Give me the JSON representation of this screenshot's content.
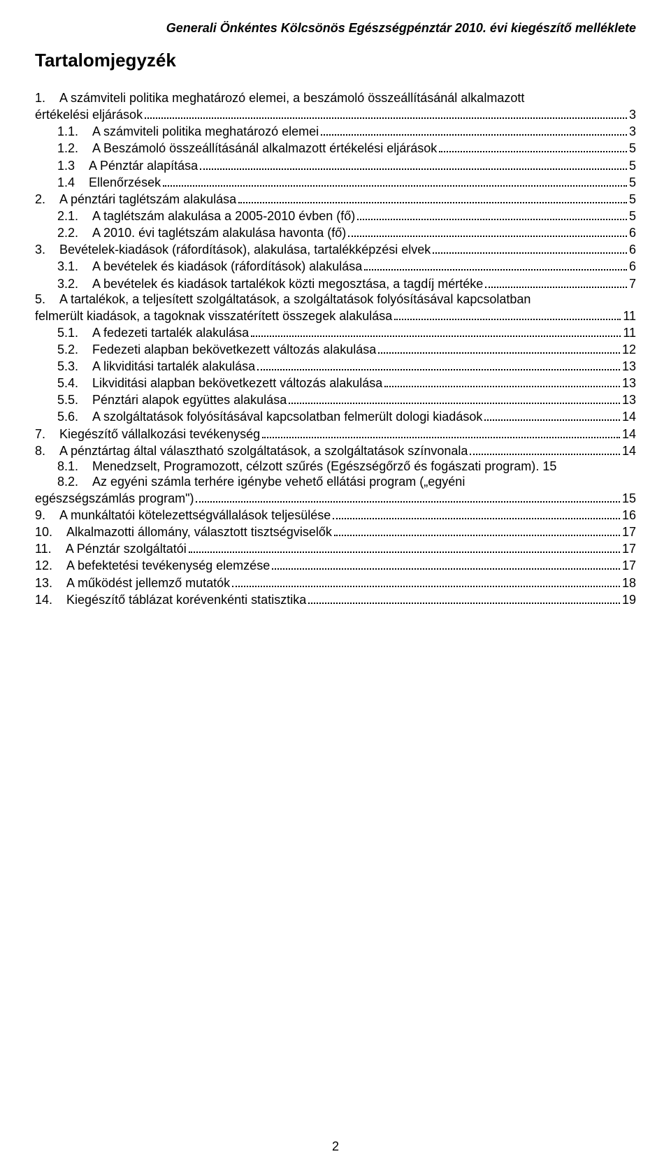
{
  "header": "Generali Önkéntes Kölcsönös Egészségpénztár 2010. évi kiegészítő melléklete",
  "title": "Tartalomjegyzék",
  "pageNumber": "2",
  "toc": [
    {
      "level": 0,
      "num": "1.",
      "text": "A számviteli politika meghatározó elemei, a beszámoló összeállításánál alkalmazott",
      "page": "",
      "wrap": true
    },
    {
      "level": 0,
      "num": "",
      "text": "értékelési eljárások",
      "page": "3"
    },
    {
      "level": 1,
      "num": "1.1.",
      "text": "A számviteli politika meghatározó elemei",
      "page": "3"
    },
    {
      "level": 1,
      "num": "1.2.",
      "text": "A Beszámoló összeállításánál alkalmazott értékelési eljárások",
      "page": "5"
    },
    {
      "level": 1,
      "num": "1.3",
      "text": "A Pénztár alapítása",
      "page": "5"
    },
    {
      "level": 1,
      "num": "1.4",
      "text": "Ellenőrzések",
      "page": "5"
    },
    {
      "level": 0,
      "num": "2.",
      "text": "A pénztári taglétszám alakulása",
      "page": "5"
    },
    {
      "level": 1,
      "num": "2.1.",
      "text": "A taglétszám alakulása a 2005-2010 évben (fő)",
      "page": "5"
    },
    {
      "level": 1,
      "num": "2.2.",
      "text": "A 2010. évi taglétszám alakulása havonta (fő)",
      "page": "6"
    },
    {
      "level": 0,
      "num": "3.",
      "text": "Bevételek-kiadások (ráfordítások), alakulása, tartalékképzési elvek",
      "page": "6"
    },
    {
      "level": 1,
      "num": "3.1.",
      "text": "A bevételek és kiadások (ráfordítások) alakulása",
      "page": "6"
    },
    {
      "level": 1,
      "num": "3.2.",
      "text": "A bevételek és kiadások tartalékok közti megosztása, a tagdíj mértéke",
      "page": "7"
    },
    {
      "level": 0,
      "num": "5.",
      "text": "A tartalékok, a teljesített szolgáltatások, a szolgáltatások folyósításával kapcsolatban",
      "page": "",
      "wrap": true
    },
    {
      "level": 0,
      "num": "",
      "text": "felmerült kiadások, a tagoknak visszatérített összegek alakulása",
      "page": "11"
    },
    {
      "level": 1,
      "num": "5.1.",
      "text": "A fedezeti tartalék alakulása",
      "page": "11"
    },
    {
      "level": 1,
      "num": "5.2.",
      "text": "Fedezeti alapban bekövetkezett változás alakulása",
      "page": "12"
    },
    {
      "level": 1,
      "num": "5.3.",
      "text": "A likviditási tartalék alakulása",
      "page": "13"
    },
    {
      "level": 1,
      "num": "5.4.",
      "text": "Likviditási alapban bekövetkezett változás alakulása",
      "page": "13"
    },
    {
      "level": 1,
      "num": "5.5.",
      "text": "Pénztári alapok együttes alakulása",
      "page": "13"
    },
    {
      "level": 1,
      "num": "5.6.",
      "text": "A szolgáltatások folyósításával kapcsolatban felmerült dologi kiadások",
      "page": "14"
    },
    {
      "level": 0,
      "num": "7.",
      "text": "Kiegészítő vállalkozási tevékenység",
      "page": "14"
    },
    {
      "level": 0,
      "num": "8.",
      "text": "A pénztártag által választható szolgáltatások, a szolgáltatások színvonala",
      "page": "14"
    },
    {
      "level": 1,
      "num": "8.1.",
      "text": "Menedzselt, Programozott, célzott szűrés (Egészségőrző és fogászati program)",
      "page": ". 15",
      "nodots": true
    },
    {
      "level": 1,
      "num": "8.2.",
      "text": "Az egyéni számla terhére igénybe vehető ellátási program („egyéni",
      "page": "",
      "wrap": true
    },
    {
      "level": 0,
      "num": "",
      "text": "egészségszámlás program\")",
      "page": "15"
    },
    {
      "level": 0,
      "num": "9.",
      "text": "A munkáltatói kötelezettségvállalások teljesülése",
      "page": "16"
    },
    {
      "level": 0,
      "num": "10.",
      "text": "Alkalmazotti állomány, választott tisztségviselők",
      "page": "17"
    },
    {
      "level": 0,
      "num": "11.",
      "text": "A Pénztár szolgáltatói",
      "page": "17"
    },
    {
      "level": 0,
      "num": "12.",
      "text": "A befektetési tevékenység elemzése",
      "page": "17"
    },
    {
      "level": 0,
      "num": "13.",
      "text": "A működést jellemző mutatók",
      "page": "18"
    },
    {
      "level": 0,
      "num": "14.",
      "text": "Kiegészítő táblázat korévenkénti statisztika",
      "page": "19"
    }
  ]
}
